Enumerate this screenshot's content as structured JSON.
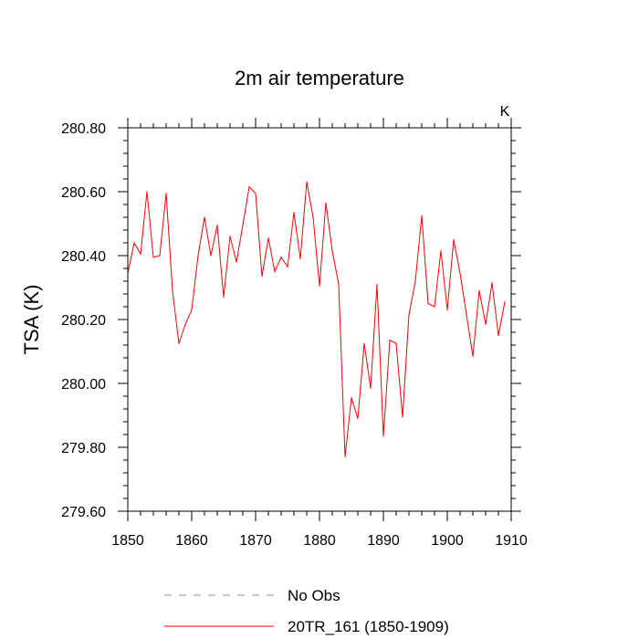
{
  "chart_data": {
    "type": "line",
    "title": "2m air temperature",
    "xlabel": "",
    "ylabel": "TSA  (K)",
    "units": "K",
    "xlim": [
      1850,
      1910
    ],
    "ylim": [
      279.6,
      280.8
    ],
    "xticks": [
      1850,
      1860,
      1870,
      1880,
      1890,
      1900,
      1910
    ],
    "xtick_labels": [
      "1850",
      "1860",
      "1870",
      "1880",
      "1890",
      "1900",
      "1910"
    ],
    "yticks": [
      279.6,
      279.8,
      280.0,
      280.2,
      280.4,
      280.6,
      280.8
    ],
    "ytick_labels": [
      "279.60",
      "279.80",
      "280.00",
      "280.20",
      "280.40",
      "280.60",
      "280.80"
    ],
    "grid": false,
    "colors": {
      "model": "#ff0000",
      "obs": "#8080ff"
    },
    "legend": [
      {
        "name": "No Obs",
        "style": "dashed",
        "color": "#8080ff"
      },
      {
        "name": "20TR_161 (1850-1909)",
        "style": "solid",
        "color": "#ff0000"
      }
    ],
    "series": [
      {
        "name": "20TR_161 (1850-1909)",
        "x": [
          1850,
          1851,
          1852,
          1853,
          1854,
          1855,
          1856,
          1857,
          1858,
          1859,
          1860,
          1861,
          1862,
          1863,
          1864,
          1865,
          1866,
          1867,
          1868,
          1869,
          1870,
          1871,
          1872,
          1873,
          1874,
          1875,
          1876,
          1877,
          1878,
          1879,
          1880,
          1881,
          1882,
          1883,
          1884,
          1885,
          1886,
          1887,
          1888,
          1889,
          1890,
          1891,
          1892,
          1893,
          1894,
          1895,
          1896,
          1897,
          1898,
          1899,
          1900,
          1901,
          1902,
          1903,
          1904,
          1905,
          1906,
          1907,
          1908,
          1909
        ],
        "values": [
          280.345,
          280.44,
          280.405,
          280.6,
          280.395,
          280.4,
          280.595,
          280.29,
          280.125,
          280.185,
          280.23,
          280.4,
          280.52,
          280.4,
          280.495,
          280.27,
          280.46,
          280.38,
          280.495,
          280.615,
          280.595,
          280.335,
          280.455,
          280.35,
          280.395,
          280.365,
          280.535,
          280.39,
          280.63,
          280.52,
          280.305,
          280.565,
          280.415,
          280.31,
          279.77,
          279.955,
          279.89,
          280.125,
          279.985,
          280.31,
          279.835,
          280.135,
          280.125,
          279.895,
          280.215,
          280.32,
          280.525,
          280.25,
          280.24,
          280.415,
          280.23,
          280.45,
          280.345,
          280.215,
          280.085,
          280.29,
          280.185,
          280.315,
          280.15,
          280.255
        ]
      }
    ]
  }
}
